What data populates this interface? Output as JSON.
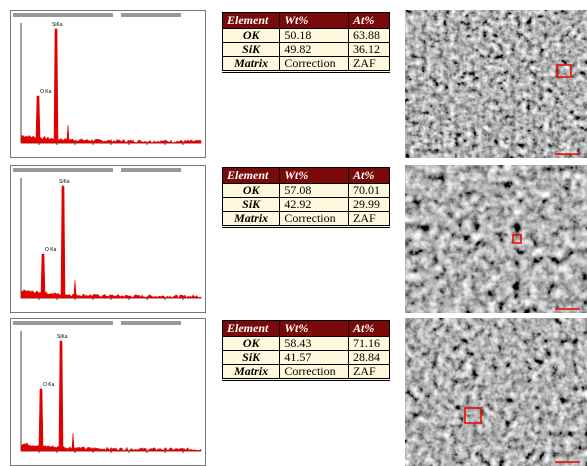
{
  "panels": [
    {
      "spectrum": {
        "peaks": [
          "O Ka",
          "SiKa"
        ]
      },
      "table": {
        "header": [
          "Element",
          "Wt%",
          "At%"
        ],
        "rows": [
          [
            "OK",
            "50.18",
            "63.88"
          ],
          [
            "SiK",
            "49.82",
            "36.12"
          ],
          [
            "Matrix",
            "Correction",
            "ZAF"
          ]
        ]
      }
    },
    {
      "spectrum": {
        "peaks": [
          "O Ka",
          "SiKa"
        ]
      },
      "table": {
        "header": [
          "Element",
          "Wt%",
          "At%"
        ],
        "rows": [
          [
            "OK",
            "57.08",
            "70.01"
          ],
          [
            "SiK",
            "42.92",
            "29.99"
          ],
          [
            "Matrix",
            "Correction",
            "ZAF"
          ]
        ]
      }
    },
    {
      "spectrum": {
        "peaks": [
          "O Ka",
          "SiKa"
        ]
      },
      "table": {
        "header": [
          "Element",
          "Wt%",
          "At%"
        ],
        "rows": [
          [
            "OK",
            "58.43",
            "71.16"
          ],
          [
            "SiK",
            "41.57",
            "28.84"
          ],
          [
            "Matrix",
            "Correction",
            "ZAF"
          ]
        ]
      }
    }
  ]
}
